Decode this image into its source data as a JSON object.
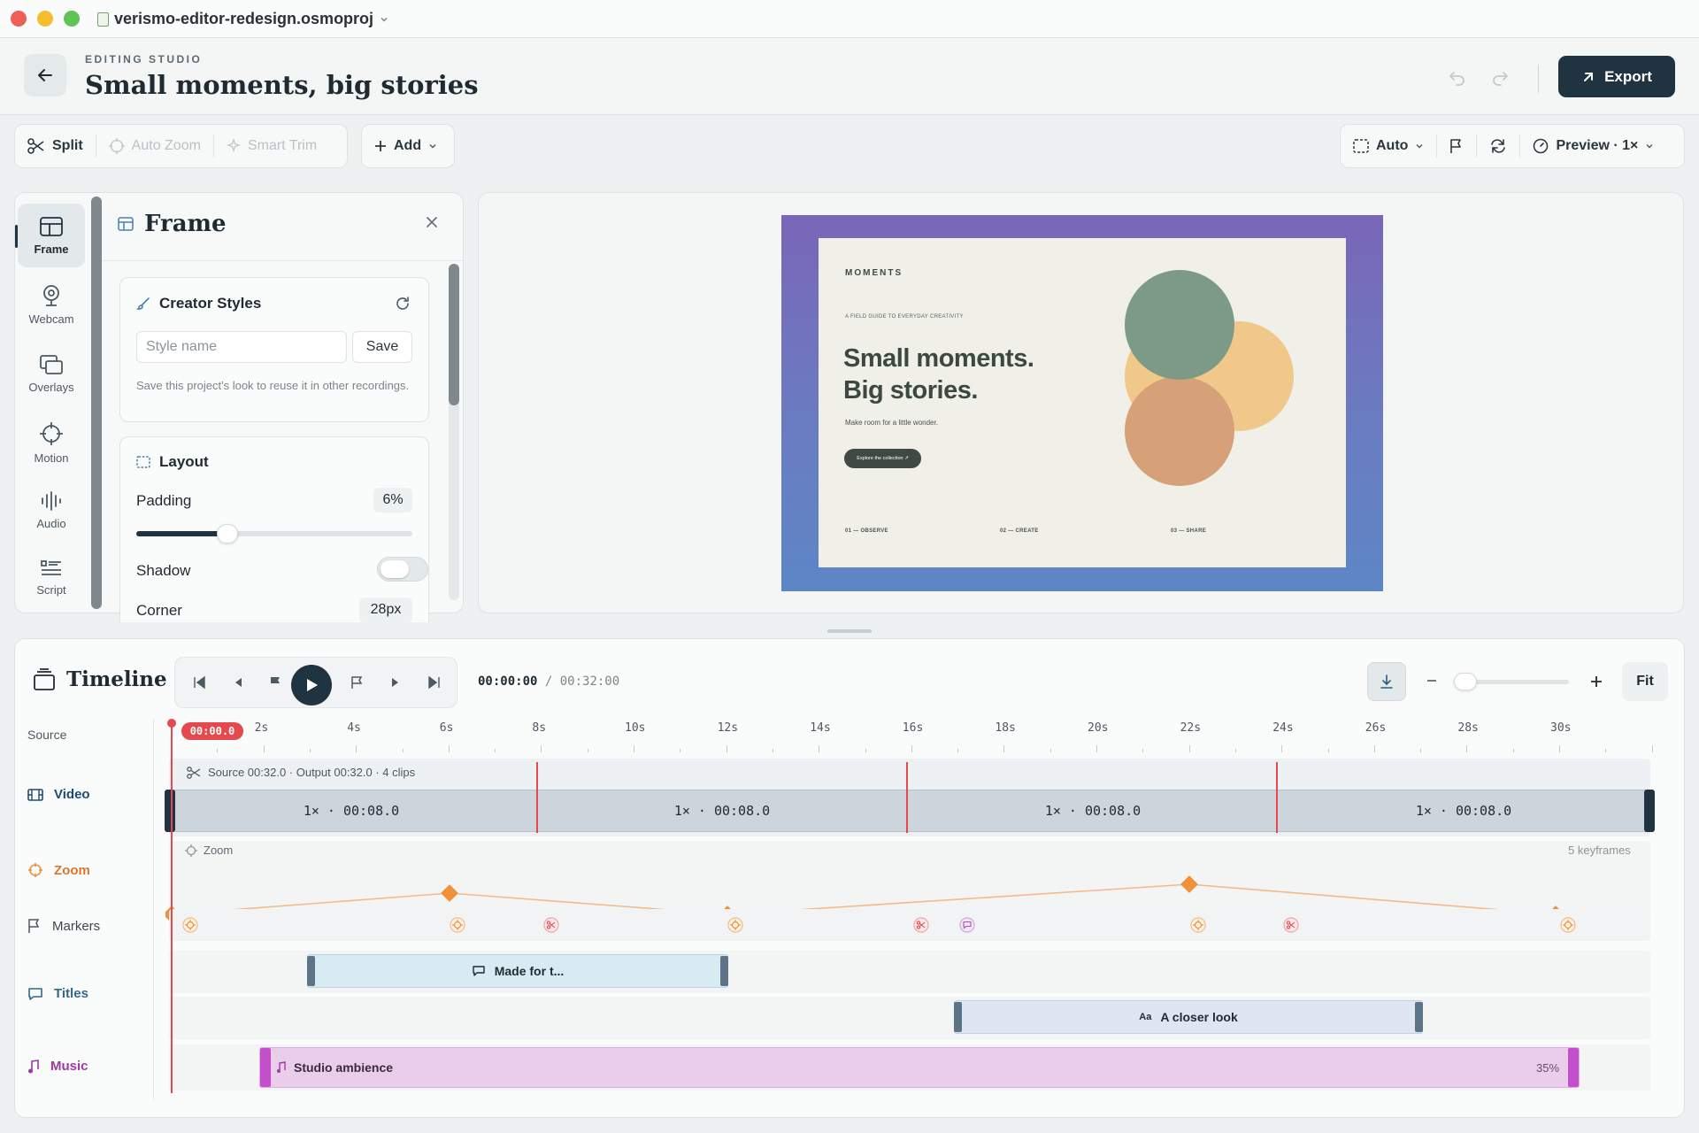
{
  "window": {
    "title": "verismo-editor-redesign.osmoproj"
  },
  "header": {
    "eyebrow": "EDITING STUDIO",
    "title": "Small moments, big stories",
    "export_label": "Export"
  },
  "toolbar": {
    "split": "Split",
    "auto_zoom": "Auto Zoom",
    "smart_trim": "Smart Trim",
    "add": "Add",
    "aspect": "Auto",
    "preview": "Preview · 1×"
  },
  "rail": {
    "items": [
      {
        "label": "Frame",
        "icon": "frame-icon"
      },
      {
        "label": "Webcam",
        "icon": "webcam-icon"
      },
      {
        "label": "Overlays",
        "icon": "overlays-icon"
      },
      {
        "label": "Motion",
        "icon": "motion-icon"
      },
      {
        "label": "Audio",
        "icon": "audio-icon"
      },
      {
        "label": "Script",
        "icon": "script-icon"
      }
    ]
  },
  "panel": {
    "title": "Frame",
    "creator": {
      "title": "Creator Styles",
      "placeholder": "Style name",
      "save_label": "Save",
      "hint": "Save this project's look to reuse it in other recordings."
    },
    "layout": {
      "title": "Layout",
      "padding_label": "Padding",
      "padding_value": "6%",
      "padding_level": 0.33,
      "shadow_label": "Shadow",
      "shadow_on": false,
      "corner_label": "Corner",
      "corner_value": "28px"
    }
  },
  "preview": {
    "brand": "MOMENTS",
    "kicker": "A FIELD GUIDE TO EVERYDAY CREATIVITY",
    "headline_1": "Small moments.",
    "headline_2": "Big stories.",
    "sub": "Make room for a little wonder.",
    "cta": "Explore the collection ↗",
    "steps": [
      "01 — OBSERVE",
      "02 — CREATE",
      "03 — SHARE"
    ],
    "colors": {
      "green": "#7d9a87",
      "peach": "#f0c98a",
      "terracotta": "#d6a078"
    }
  },
  "timeline": {
    "title": "Timeline",
    "current": "00:00:00",
    "total": "/ 00:32:00",
    "fit_label": "Fit",
    "playhead": "00:00.0",
    "ruler": [
      "2s",
      "4s",
      "6s",
      "8s",
      "10s",
      "12s",
      "14s",
      "16s",
      "18s",
      "20s",
      "22s",
      "24s",
      "26s",
      "28s",
      "30s"
    ],
    "tracks": {
      "source": "Source",
      "video": "Video",
      "zoom": "Zoom",
      "markers": "Markers",
      "titles": "Titles",
      "music": "Music"
    },
    "video": {
      "info": "Source 00:32.0 · Output 00:32.0 · 4 clips",
      "clips": [
        "1× · 00:08.0",
        "1× · 00:08.0",
        "1× · 00:08.0",
        "1× · 00:08.0"
      ]
    },
    "zoom": {
      "label": "Zoom",
      "keyframes": "5 keyframes"
    },
    "titles": {
      "clip1": "Made for t...",
      "clip2": "A closer look"
    },
    "music": {
      "label": "Studio ambience",
      "volume": "35%"
    },
    "colors": {
      "playhead": "#e5484d",
      "zoom": "#f0913a",
      "music": "#c44fcc"
    }
  }
}
